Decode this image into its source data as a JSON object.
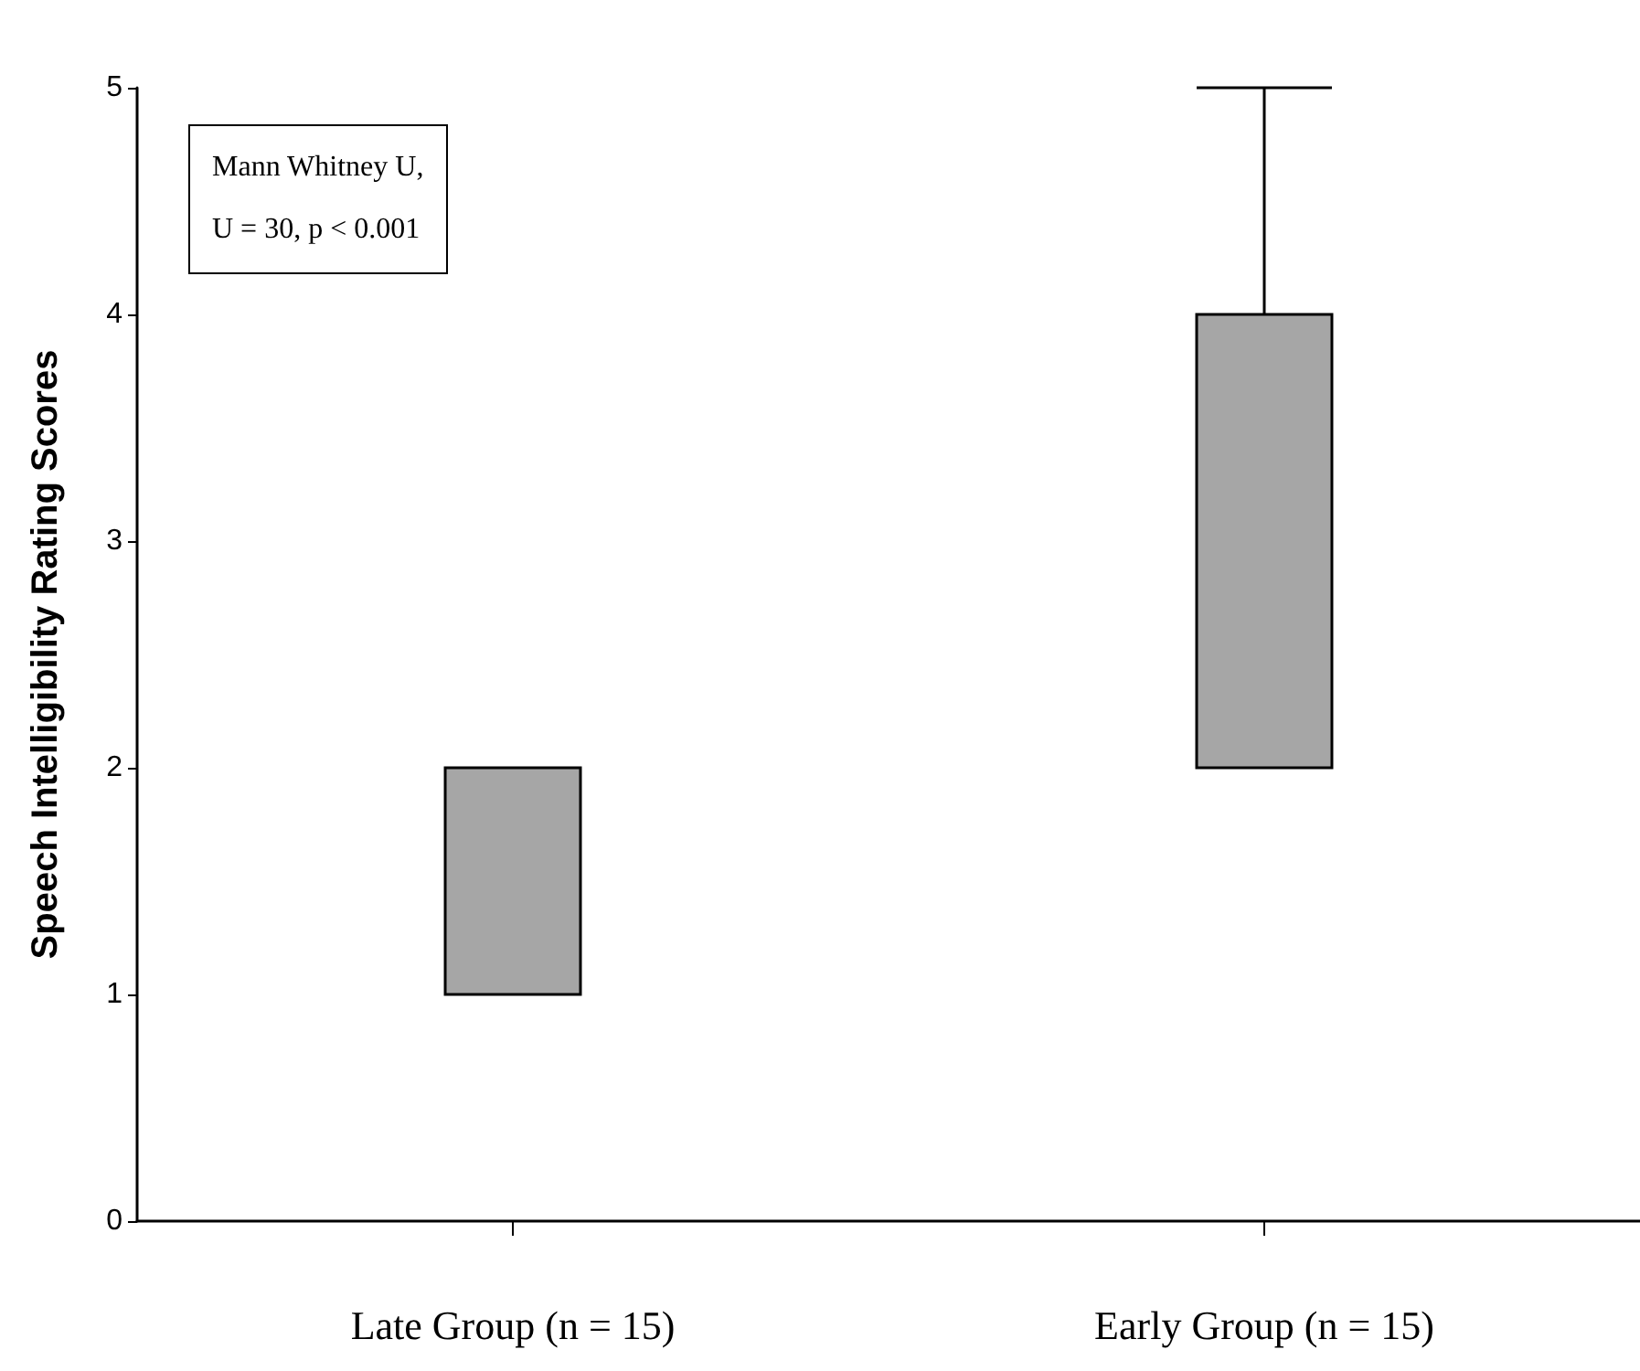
{
  "chart_data": {
    "type": "box",
    "ylabel": "Speech Intelligibility Rating Scores",
    "categories": [
      "Late Group (n = 15)",
      "Early Group (n = 15)"
    ],
    "boxes": [
      {
        "low": 1,
        "q1": 1,
        "median": 1,
        "q3": 2,
        "high": 2
      },
      {
        "low": 2,
        "q1": 2,
        "median": 2,
        "q3": 4,
        "high": 5
      }
    ],
    "color": "#a6a6a6",
    "ylim": [
      0,
      5
    ],
    "yticks": [
      0,
      1,
      2,
      3,
      4,
      5
    ],
    "grid": false,
    "annotations": [
      "Mann Whitney U,",
      "U = 30, p < 0.001"
    ]
  }
}
